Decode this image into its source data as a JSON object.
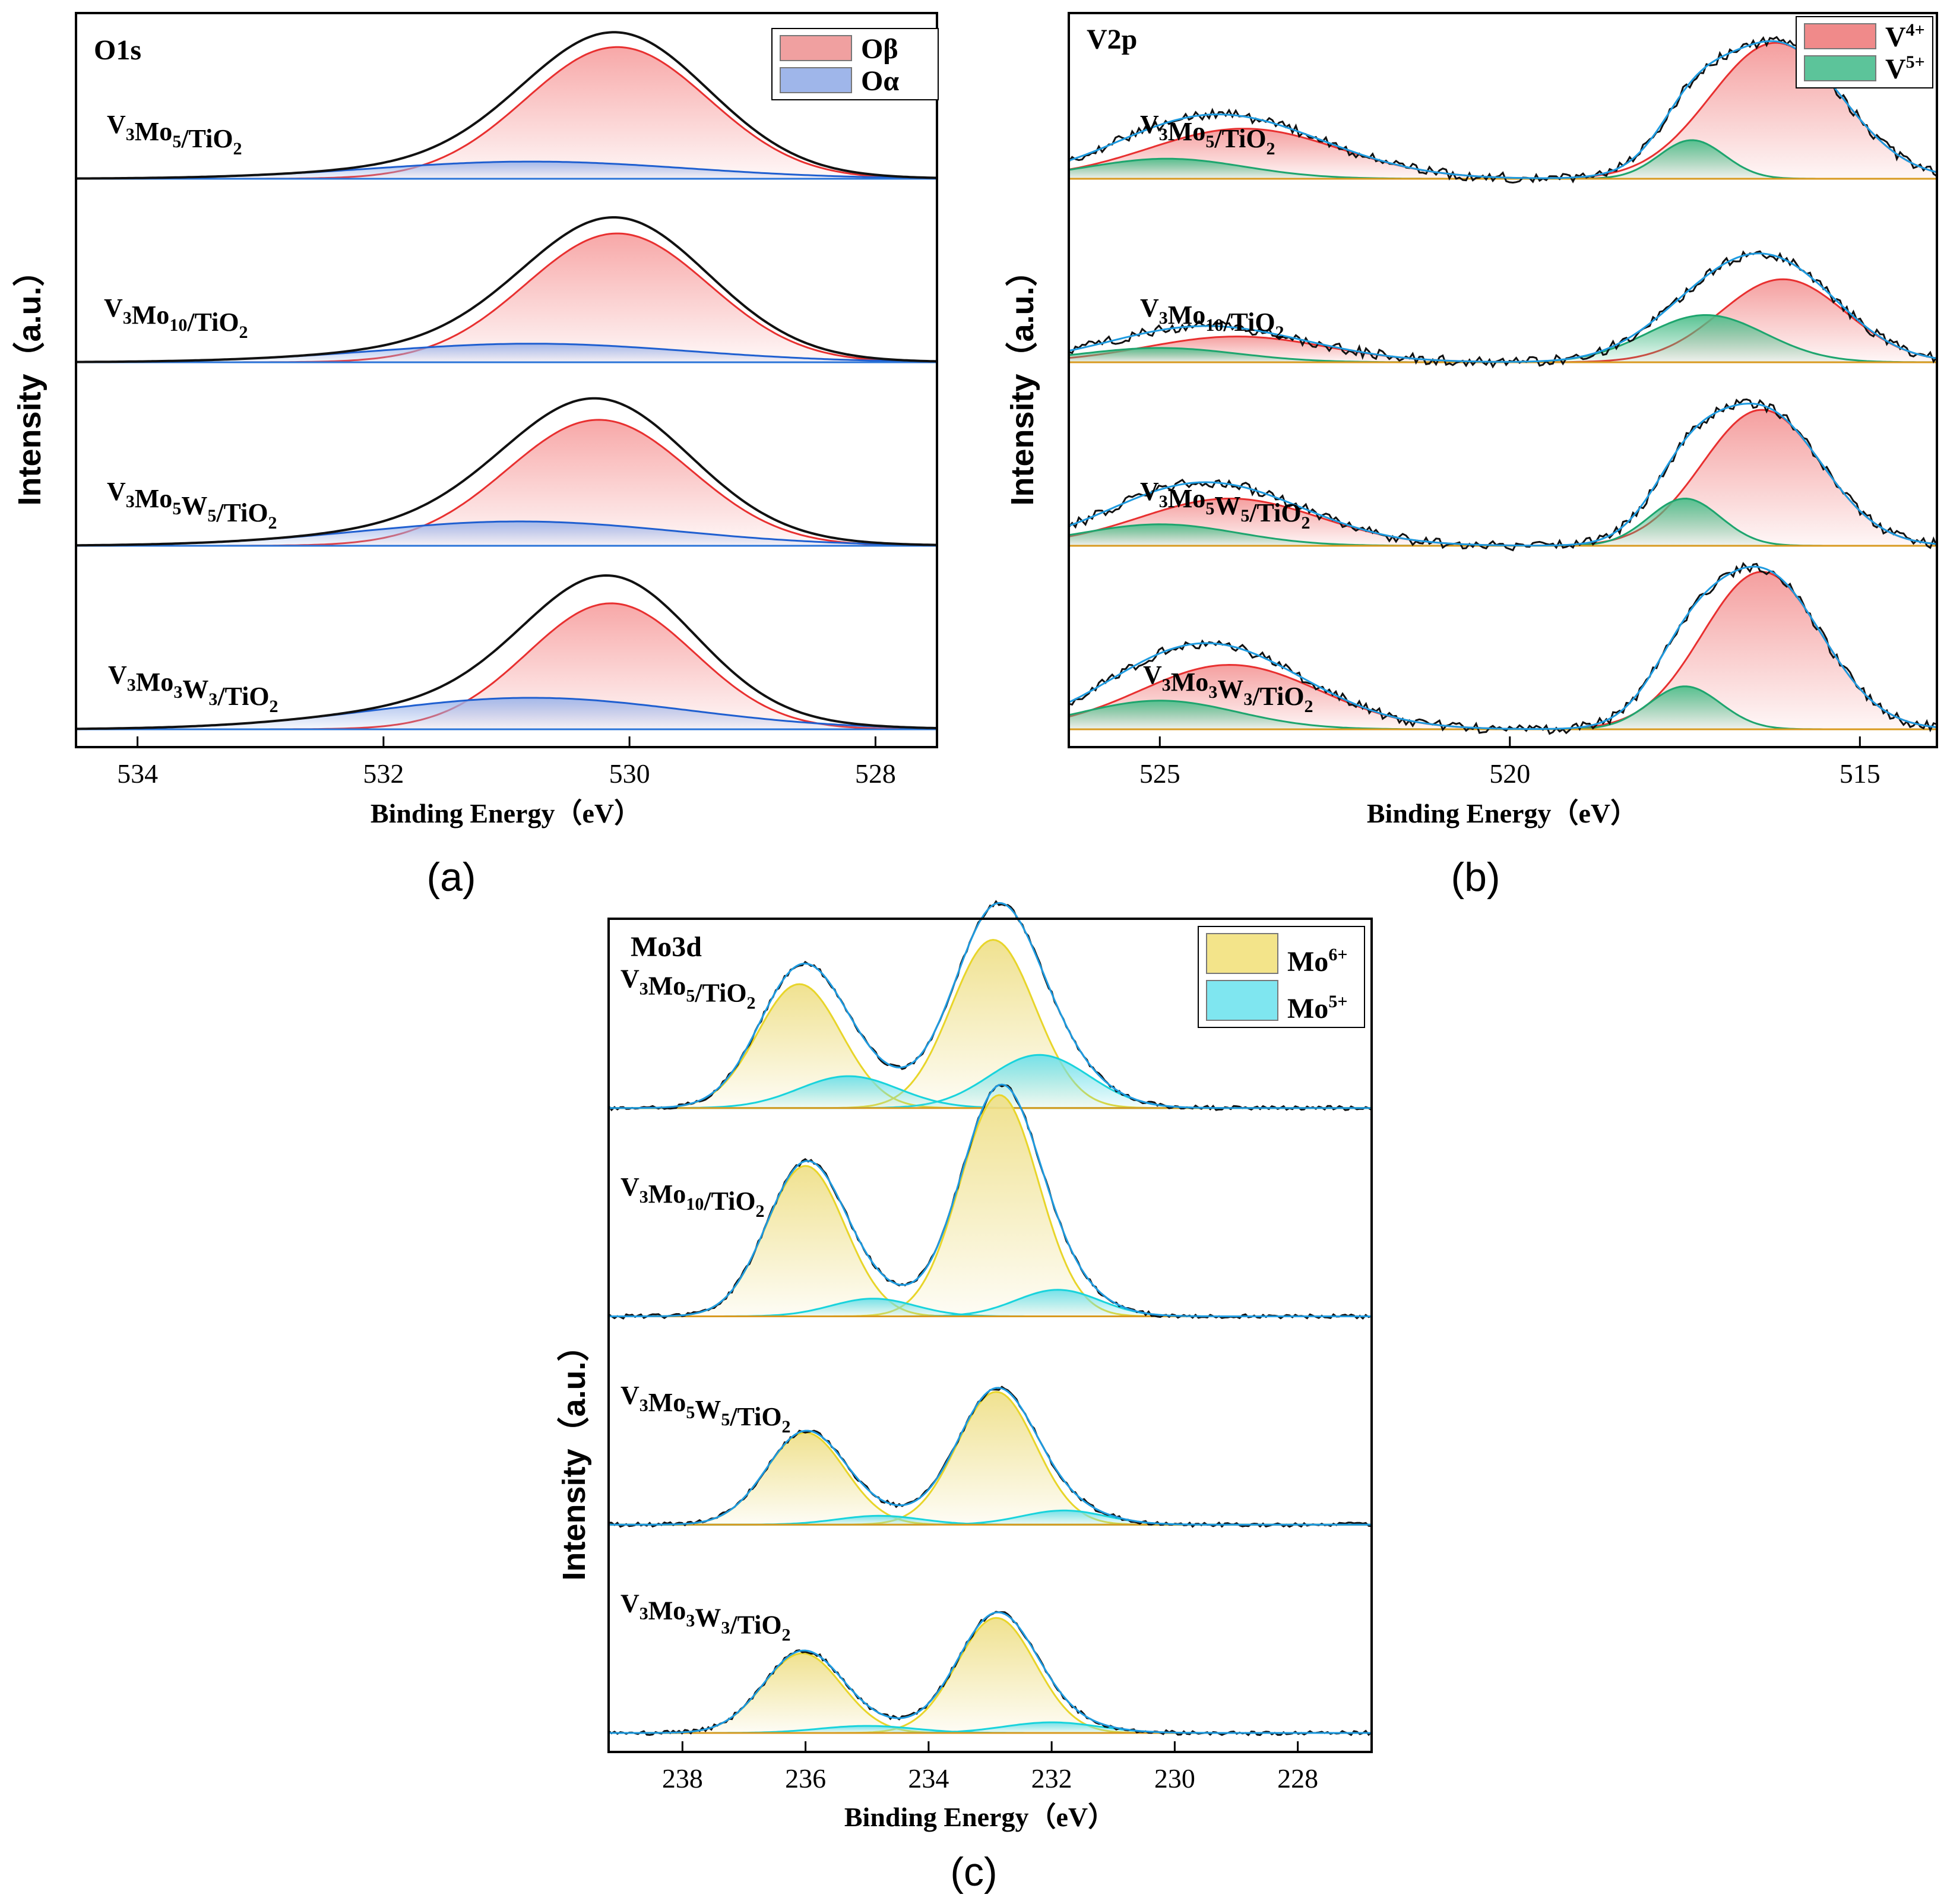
{
  "figure": {
    "panel_letters": [
      "(a)",
      "(b)",
      "(c)"
    ]
  },
  "chart_data": [
    {
      "panel": "(a)",
      "type": "line",
      "title": "O1s",
      "xlabel": "Binding Energy（eV）",
      "ylabel": "Intensity（a.u.）",
      "xlim": [
        534.5,
        527.5
      ],
      "xticks": [
        534,
        532,
        530,
        528
      ],
      "x_reversed": true,
      "legend": {
        "placement": "top-right",
        "entries": [
          {
            "label": "Oβ",
            "color": "#f0a0a0"
          },
          {
            "label": "Oα",
            "color": "#9fb6ea"
          }
        ]
      },
      "components": [
        {
          "name": "Oβ",
          "line_color": "#e83030",
          "fill_color": "#f7a3a3",
          "shape": "gaussian"
        },
        {
          "name": "Oα",
          "line_color": "#1f5fd0",
          "fill_color": "#9fb6ea",
          "shape": "gaussian"
        }
      ],
      "series": [
        {
          "name": "V3Mo5/TiO2",
          "label_main": [
            "V",
            "Mo",
            "/TiO"
          ],
          "label_subs": [
            "3",
            "5",
            "2"
          ],
          "peaks": [
            {
              "component": "Oβ",
              "center": 530.1,
              "fwhm": 1.75,
              "height": 0.92
            },
            {
              "component": "Oα",
              "center": 530.8,
              "fwhm": 3.0,
              "height": 0.12
            }
          ]
        },
        {
          "name": "V3Mo10/TiO2",
          "label_main": [
            "V",
            "Mo",
            "/TiO"
          ],
          "label_subs": [
            "3",
            "10",
            "2"
          ],
          "peaks": [
            {
              "component": "Oβ",
              "center": 530.1,
              "fwhm": 1.75,
              "height": 0.9
            },
            {
              "component": "Oα",
              "center": 530.8,
              "fwhm": 3.0,
              "height": 0.13
            }
          ]
        },
        {
          "name": "V3Mo5W5/TiO2",
          "label_main": [
            "V",
            "Mo",
            "W",
            "/TiO"
          ],
          "label_subs": [
            "3",
            "5",
            "5",
            "2"
          ],
          "peaks": [
            {
              "component": "Oβ",
              "center": 530.25,
              "fwhm": 1.75,
              "height": 0.88
            },
            {
              "component": "Oα",
              "center": 530.9,
              "fwhm": 3.0,
              "height": 0.17
            }
          ]
        },
        {
          "name": "V3Mo3W3/TiO2",
          "label_main": [
            "V",
            "Mo",
            "W",
            "/TiO"
          ],
          "label_subs": [
            "3",
            "3",
            "3",
            "2"
          ],
          "peaks": [
            {
              "component": "Oβ",
              "center": 530.15,
              "fwhm": 1.6,
              "height": 0.88
            },
            {
              "component": "Oα",
              "center": 530.8,
              "fwhm": 3.0,
              "height": 0.22
            }
          ]
        }
      ]
    },
    {
      "panel": "(b)",
      "type": "line",
      "title": "V2p",
      "xlabel": "Binding Energy（eV）",
      "ylabel": "Intensity（a.u.）",
      "xlim": [
        526.3,
        513.9
      ],
      "xticks": [
        525,
        520,
        515
      ],
      "x_reversed": true,
      "legend": {
        "placement": "top-right",
        "entries": [
          {
            "label": "V",
            "sup": "4+",
            "color": "#f08a8a"
          },
          {
            "label": "V",
            "sup": "5+",
            "color": "#5cc49a"
          }
        ]
      },
      "components": [
        {
          "name": "V4+",
          "line_color": "#e83030",
          "fill_color": "#f49a9a",
          "shape": "gaussian"
        },
        {
          "name": "V5+",
          "line_color": "#1ea56e",
          "fill_color": "#4fbf8c",
          "shape": "gaussian"
        }
      ],
      "series": [
        {
          "name": "V3Mo5/TiO2",
          "label_main": [
            "V",
            "Mo",
            "/TiO"
          ],
          "label_subs": [
            "3",
            "5",
            "2"
          ],
          "peaks": [
            {
              "component": "V4+",
              "center": 516.2,
              "fwhm": 2.2,
              "height": 0.95
            },
            {
              "component": "V5+",
              "center": 517.4,
              "fwhm": 1.1,
              "height": 0.27
            },
            {
              "component": "V4+",
              "center": 523.8,
              "fwhm": 3.2,
              "height": 0.35
            },
            {
              "component": "V5+",
              "center": 524.9,
              "fwhm": 2.6,
              "height": 0.14
            }
          ]
        },
        {
          "name": "V3Mo10/TiO2",
          "label_main": [
            "V",
            "Mo",
            "/TiO"
          ],
          "label_subs": [
            "3",
            "10",
            "2"
          ],
          "peaks": [
            {
              "component": "V4+",
              "center": 516.1,
              "fwhm": 2.1,
              "height": 0.58
            },
            {
              "component": "V5+",
              "center": 517.2,
              "fwhm": 2.0,
              "height": 0.33
            },
            {
              "component": "V4+",
              "center": 523.9,
              "fwhm": 3.0,
              "height": 0.18
            },
            {
              "component": "V5+",
              "center": 525.0,
              "fwhm": 2.6,
              "height": 0.1
            }
          ]
        },
        {
          "name": "V3Mo5W5/TiO2",
          "label_main": [
            "V",
            "Mo",
            "W",
            "/TiO"
          ],
          "label_subs": [
            "3",
            "5",
            "5",
            "2"
          ],
          "peaks": [
            {
              "component": "V4+",
              "center": 516.4,
              "fwhm": 2.0,
              "height": 0.95
            },
            {
              "component": "V5+",
              "center": 517.5,
              "fwhm": 1.2,
              "height": 0.33
            },
            {
              "component": "V4+",
              "center": 524.0,
              "fwhm": 3.0,
              "height": 0.33
            },
            {
              "component": "V5+",
              "center": 525.0,
              "fwhm": 2.6,
              "height": 0.15
            }
          ]
        },
        {
          "name": "V3Mo3W3/TiO2",
          "label_main": [
            "V",
            "Mo",
            "W",
            "/TiO"
          ],
          "label_subs": [
            "3",
            "3",
            "3",
            "2"
          ],
          "peaks": [
            {
              "component": "V4+",
              "center": 516.4,
              "fwhm": 2.0,
              "height": 1.1
            },
            {
              "component": "V5+",
              "center": 517.5,
              "fwhm": 1.2,
              "height": 0.3
            },
            {
              "component": "V4+",
              "center": 524.0,
              "fwhm": 3.0,
              "height": 0.45
            },
            {
              "component": "V5+",
              "center": 525.0,
              "fwhm": 2.6,
              "height": 0.2
            }
          ]
        }
      ]
    },
    {
      "panel": "(c)",
      "type": "line",
      "title": "Mo3d",
      "xlabel": "Binding Energy（eV）",
      "ylabel": "Intensity（a.u.）",
      "xlim": [
        239.2,
        226.8
      ],
      "xticks": [
        238,
        236,
        234,
        232,
        230,
        228
      ],
      "x_reversed": true,
      "legend": {
        "placement": "top-right",
        "entries": [
          {
            "label": "Mo",
            "sup": "6+",
            "color": "#f3e48a"
          },
          {
            "label": "Mo",
            "sup": "5+",
            "color": "#7fe6f0"
          }
        ]
      },
      "components": [
        {
          "name": "Mo6+",
          "line_color": "#e8d52a",
          "fill_color": "#efe08a",
          "shape": "gaussian"
        },
        {
          "name": "Mo5+",
          "line_color": "#19d3dc",
          "fill_color": "#6fe0ea",
          "shape": "gaussian"
        }
      ],
      "series": [
        {
          "name": "V3Mo5/TiO2",
          "label_main": [
            "V",
            "Mo",
            "/TiO"
          ],
          "label_subs": [
            "3",
            "5",
            "2"
          ],
          "peaks": [
            {
              "component": "Mo6+",
              "center": 232.95,
              "fwhm": 1.6,
              "height": 0.95
            },
            {
              "component": "Mo6+",
              "center": 236.1,
              "fwhm": 1.6,
              "height": 0.7
            },
            {
              "component": "Mo5+",
              "center": 232.2,
              "fwhm": 1.9,
              "height": 0.3
            },
            {
              "component": "Mo5+",
              "center": 235.3,
              "fwhm": 1.9,
              "height": 0.18
            }
          ]
        },
        {
          "name": "V3Mo10/TiO2",
          "label_main": [
            "V",
            "Mo",
            "/TiO"
          ],
          "label_subs": [
            "3",
            "10",
            "2"
          ],
          "peaks": [
            {
              "component": "Mo6+",
              "center": 232.85,
              "fwhm": 1.5,
              "height": 1.25
            },
            {
              "component": "Mo6+",
              "center": 236.0,
              "fwhm": 1.5,
              "height": 0.85
            },
            {
              "component": "Mo5+",
              "center": 231.9,
              "fwhm": 1.6,
              "height": 0.15
            },
            {
              "component": "Mo5+",
              "center": 234.9,
              "fwhm": 1.6,
              "height": 0.1
            }
          ]
        },
        {
          "name": "V3Mo5W5/TiO2",
          "label_main": [
            "V",
            "Mo",
            "W",
            "/TiO"
          ],
          "label_subs": [
            "3",
            "5",
            "5",
            "2"
          ],
          "peaks": [
            {
              "component": "Mo6+",
              "center": 232.9,
              "fwhm": 1.5,
              "height": 0.75
            },
            {
              "component": "Mo6+",
              "center": 236.0,
              "fwhm": 1.5,
              "height": 0.52
            },
            {
              "component": "Mo5+",
              "center": 231.8,
              "fwhm": 1.6,
              "height": 0.08
            },
            {
              "component": "Mo5+",
              "center": 234.8,
              "fwhm": 1.6,
              "height": 0.05
            }
          ]
        },
        {
          "name": "V3Mo3W3/TiO2",
          "label_main": [
            "V",
            "Mo",
            "W",
            "/TiO"
          ],
          "label_subs": [
            "3",
            "3",
            "3",
            "2"
          ],
          "peaks": [
            {
              "component": "Mo6+",
              "center": 232.9,
              "fwhm": 1.5,
              "height": 0.65
            },
            {
              "component": "Mo6+",
              "center": 236.05,
              "fwhm": 1.5,
              "height": 0.45
            },
            {
              "component": "Mo5+",
              "center": 232.0,
              "fwhm": 1.8,
              "height": 0.06
            },
            {
              "component": "Mo5+",
              "center": 235.0,
              "fwhm": 1.8,
              "height": 0.04
            }
          ]
        }
      ]
    }
  ]
}
